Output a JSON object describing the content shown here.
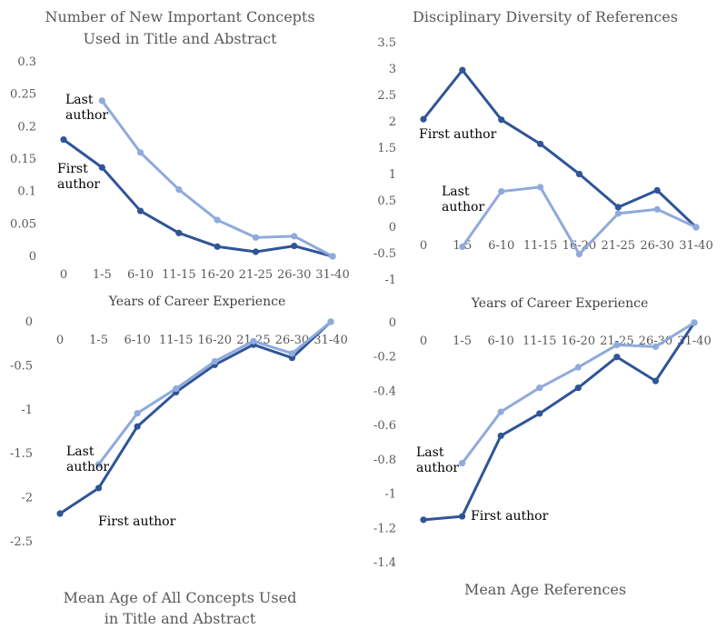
{
  "colors": {
    "first": "#2f5597",
    "last": "#8faadc",
    "text": "#595959"
  },
  "chart_data": [
    {
      "id": "new-concepts",
      "type": "line",
      "title": [
        "Number of New Important Concepts",
        "Used in Title and Abstract"
      ],
      "categories": [
        "0",
        "1-5",
        "6-10",
        "11-15",
        "16-20",
        "21-25",
        "26-30",
        "31-40"
      ],
      "yticks": [
        "0.3",
        "0.25",
        "0.2",
        "0.15",
        "0.1",
        "0.05",
        "0"
      ],
      "xlabel": "Years of Career Experience",
      "ylim": [
        0,
        0.3
      ],
      "series": [
        {
          "name": "First author",
          "values": [
            0.18,
            0.137,
            0.07,
            0.036,
            0.015,
            0.007,
            0.016,
            0
          ]
        },
        {
          "name": "Last author",
          "values": [
            null,
            0.24,
            0.16,
            0.103,
            0.056,
            0.029,
            0.031,
            0
          ]
        }
      ]
    },
    {
      "id": "disciplinary-diversity",
      "type": "line",
      "title": [
        "Disciplinary Diversity of References"
      ],
      "categories": [
        "0",
        "1-5",
        "6-10",
        "11-15",
        "16-20",
        "21-25",
        "26-30",
        "31-40"
      ],
      "yticks": [
        "3.5",
        "3",
        "2.5",
        "2",
        "1.5",
        "1",
        "0.5",
        "0",
        "-0.5",
        "-1"
      ],
      "xlabel": "Years of Career Experience",
      "ylim": [
        -1,
        3.5
      ],
      "series": [
        {
          "name": "First author",
          "values": [
            2.05,
            2.98,
            2.04,
            1.58,
            1.01,
            0.38,
            0.7,
            0
          ]
        },
        {
          "name": "Last author",
          "values": [
            null,
            -0.37,
            0.68,
            0.76,
            -0.51,
            0.26,
            0.34,
            0
          ]
        }
      ]
    },
    {
      "id": "mean-age-concepts",
      "type": "line",
      "title": [
        "Mean Age of All Concepts Used",
        "in Title and Abstract"
      ],
      "categories": [
        "0",
        "1-5",
        "6-10",
        "11-15",
        "16-20",
        "21-25",
        "26-30",
        "31-40"
      ],
      "yticks": [
        "0",
        "-0.5",
        "-1",
        "-1.5",
        "-2",
        "-2.5"
      ],
      "ylim": [
        -2.5,
        0
      ],
      "series": [
        {
          "name": "First author",
          "values": [
            -2.18,
            -1.89,
            -1.19,
            -0.8,
            -0.49,
            -0.26,
            -0.41,
            0
          ]
        },
        {
          "name": "Last author",
          "values": [
            null,
            -1.62,
            -1.04,
            -0.76,
            -0.45,
            -0.22,
            -0.36,
            0
          ]
        }
      ]
    },
    {
      "id": "mean-age-references",
      "type": "line",
      "title": [
        "Mean Age References"
      ],
      "categories": [
        "0",
        "1-5",
        "6-10",
        "11-15",
        "16-20",
        "21-25",
        "26-30",
        "31-40"
      ],
      "yticks": [
        "0",
        "-0.2",
        "-0.4",
        "-0.6",
        "-0.8",
        "-1",
        "-1.2",
        "-1.4"
      ],
      "ylim": [
        -1.4,
        0
      ],
      "series": [
        {
          "name": "First author",
          "values": [
            -1.15,
            -1.13,
            -0.66,
            -0.53,
            -0.38,
            -0.2,
            -0.34,
            0
          ]
        },
        {
          "name": "Last author",
          "values": [
            null,
            -0.82,
            -0.52,
            -0.38,
            -0.26,
            -0.13,
            -0.14,
            0
          ]
        }
      ]
    }
  ]
}
